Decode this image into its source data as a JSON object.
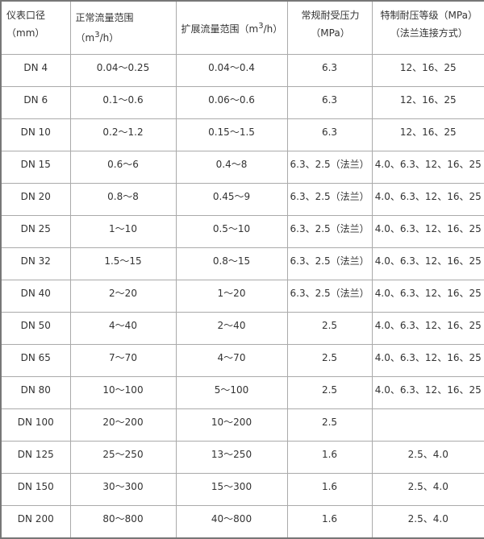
{
  "headers": {
    "size": "仪表口径（mm）",
    "normal_pre": "正常流量范围（m",
    "normal_sup": "3",
    "normal_post": "/h）",
    "ext_pre": "扩展流量范围（m",
    "ext_sup": "3",
    "ext_post": "/h）",
    "pressure": "常规耐受压力（MPa）",
    "special": "特制耐压等级（MPa）（法兰连接方式）"
  },
  "rows": [
    [
      "DN 4",
      "0.04～0.25",
      "0.04～0.4",
      "6.3",
      "12、16、25"
    ],
    [
      "DN 6",
      "0.1～0.6",
      "0.06～0.6",
      "6.3",
      "12、16、25"
    ],
    [
      "DN 10",
      "0.2～1.2",
      "0.15～1.5",
      "6.3",
      "12、16、25"
    ],
    [
      "DN 15",
      "0.6～6",
      "0.4～8",
      "6.3、2.5（法兰）",
      "4.0、6.3、12、16、25"
    ],
    [
      "DN 20",
      "0.8～8",
      "0.45～9",
      "6.3、2.5（法兰）",
      "4.0、6.3、12、16、25"
    ],
    [
      "DN 25",
      "1～10",
      "0.5～10",
      "6.3、2.5（法兰）",
      "4.0、6.3、12、16、25"
    ],
    [
      "DN 32",
      "1.5～15",
      "0.8～15",
      "6.3、2.5（法兰）",
      "4.0、6.3、12、16、25"
    ],
    [
      "DN 40",
      "2～20",
      "1～20",
      "6.3、2.5（法兰）",
      "4.0、6.3、12、16、25"
    ],
    [
      "DN 50",
      "4～40",
      "2～40",
      "2.5",
      "4.0、6.3、12、16、25"
    ],
    [
      "DN 65",
      "7～70",
      "4～70",
      "2.5",
      "4.0、6.3、12、16、25"
    ],
    [
      "DN 80",
      "10～100",
      "5～100",
      "2.5",
      "4.0、6.3、12、16、25"
    ],
    [
      "DN 100",
      "20～200",
      "10～200",
      "2.5",
      ""
    ],
    [
      "DN 125",
      "25～250",
      "13～250",
      "1.6",
      "2.5、4.0"
    ],
    [
      "DN 150",
      "30～300",
      "15～300",
      "1.6",
      "2.5、4.0"
    ],
    [
      "DN 200",
      "80～800",
      "40～800",
      "1.6",
      "2.5、4.0"
    ]
  ]
}
